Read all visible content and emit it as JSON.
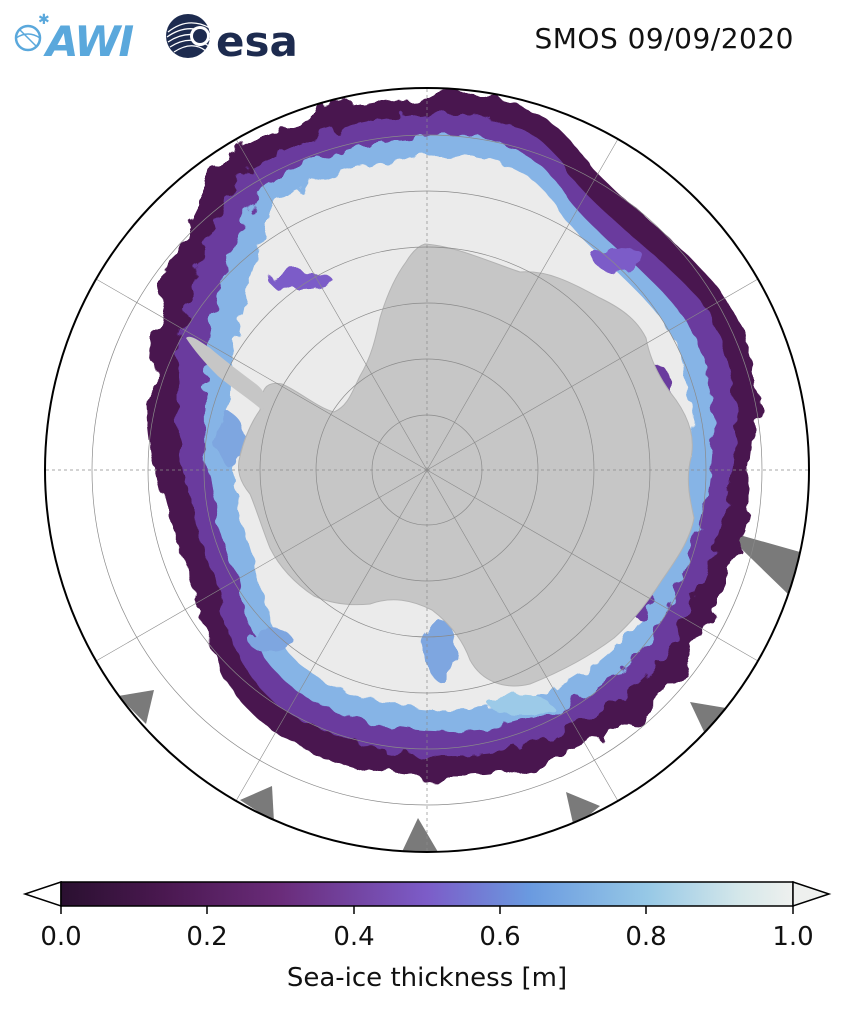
{
  "title": "SMOS 09/09/2020",
  "logos": {
    "awi": {
      "text": "AWI",
      "color": "#5aa8dc"
    },
    "esa": {
      "text": "esa",
      "color": "#1d2b4f"
    }
  },
  "map": {
    "projection": "south-polar-stereographic",
    "land_color": "#c6c6c6",
    "thick_ice_color": "#ebebeb",
    "ocean_color": "#ffffff",
    "no_data_color": "#7a7a7a",
    "graticule": "meridians-every-30-deg-and-parallels"
  },
  "colorbar": {
    "label": "Sea-ice thickness [m]",
    "ticks": [
      "0.0",
      "0.2",
      "0.4",
      "0.6",
      "0.8",
      "1.0"
    ],
    "tick_values": [
      0.0,
      0.2,
      0.4,
      0.6,
      0.8,
      1.0
    ],
    "range": [
      0.0,
      1.0
    ],
    "extend": "both",
    "colors": [
      "#2a1030",
      "#4a1850",
      "#6a2c7a",
      "#7c5cc8",
      "#6a9ae0",
      "#96c8e6",
      "#d6e8ea",
      "#eef0ee"
    ]
  }
}
